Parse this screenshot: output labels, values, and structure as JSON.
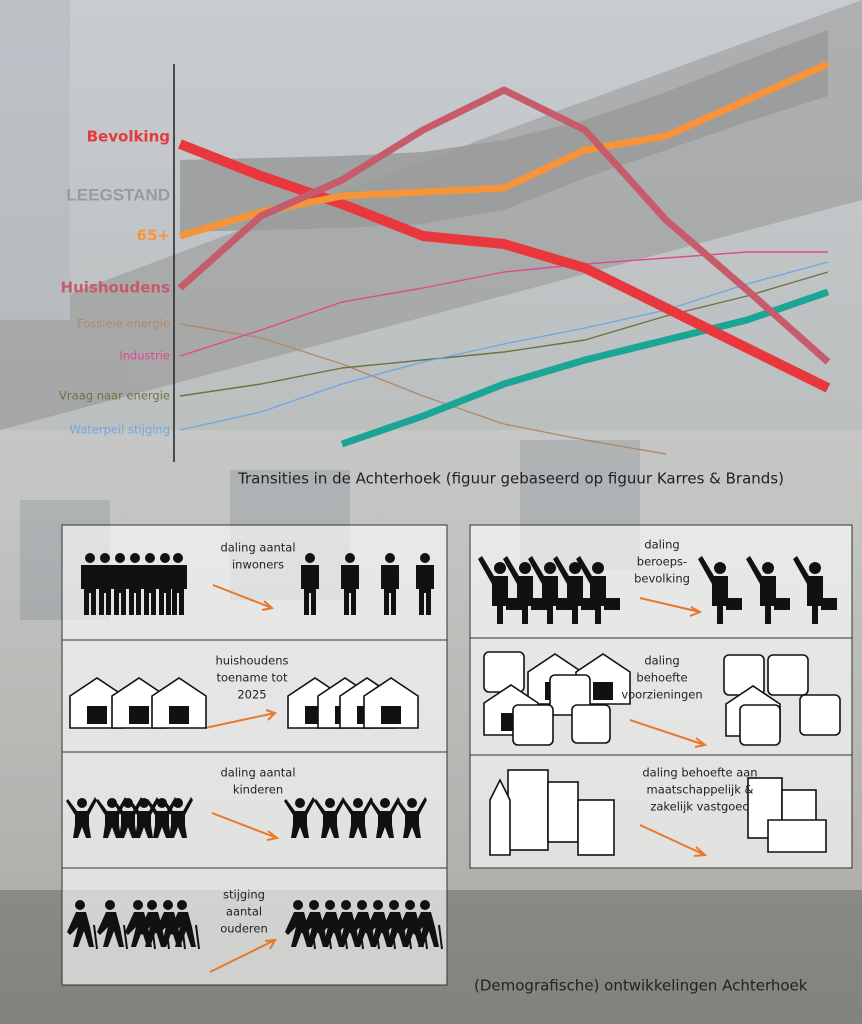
{
  "chart_data": {
    "type": "line",
    "band": {
      "name": "LEEGSTAND",
      "color": "#9a9a9a",
      "values": [
        75,
        75.5,
        76,
        77,
        80,
        85,
        92,
        100,
        107.5
      ],
      "lower": [
        57,
        57.5,
        58,
        59,
        62.5,
        70.5,
        77.5,
        84.5,
        91
      ]
    },
    "series": [
      {
        "name": "Bevolking",
        "color": "#e8383d",
        "values": [
          79,
          71,
          64,
          56,
          54,
          48,
          38,
          28,
          18
        ]
      },
      {
        "name": "65+",
        "color": "#f7943a",
        "values": [
          56,
          62,
          66,
          67,
          68,
          77.5,
          81,
          90,
          99
        ]
      },
      {
        "name": "Huishoudens",
        "color": "#c65b6b",
        "values": [
          43,
          61,
          70,
          82.5,
          92.5,
          82.5,
          60,
          42.5,
          24.5
        ]
      },
      {
        "name": "Fossiele energie",
        "color": "#b0896a",
        "values": [
          34,
          30.5,
          24,
          16,
          9,
          5,
          1.5,
          null,
          null
        ]
      },
      {
        "name": "Industrie",
        "color": "#e0488f",
        "values": [
          26,
          32.5,
          39.5,
          43,
          47,
          49,
          50.5,
          52,
          52
        ]
      },
      {
        "name": "Vraag  naar energie",
        "color": "#6e7340",
        "values": [
          16,
          19,
          23,
          25,
          27,
          30,
          36,
          41,
          47
        ]
      },
      {
        "name": "Waterpeil stijging",
        "color": "#6ea8e0",
        "values": [
          7.5,
          12,
          19,
          24.5,
          29,
          33,
          37.5,
          44,
          49.5
        ]
      },
      {
        "color": "#1aa595",
        "values": [
          null,
          null,
          4,
          11,
          19,
          25,
          30,
          35,
          42
        ]
      }
    ]
  },
  "captions": {
    "chart": "Transities in de Achterhoek (figuur gebaseerd op figuur Karres & Brands)",
    "panels": "(Demografische) ontwikkelingen Achterhoek"
  },
  "panels_left": [
    {
      "lines": [
        "daling aantal",
        "inwoners"
      ]
    },
    {
      "lines": [
        "huishoudens",
        "toename tot",
        "2025"
      ]
    },
    {
      "lines": [
        "daling aantal",
        "kinderen"
      ]
    },
    {
      "lines": [
        "stijging",
        "aantal",
        "ouderen"
      ]
    }
  ],
  "panels_right": [
    {
      "lines": [
        "daling",
        "beroeps-",
        "bevolking"
      ]
    },
    {
      "lines": [
        "daling",
        "behoefte",
        "voorzieningen"
      ]
    },
    {
      "lines": [
        "daling behoefte aan",
        "maatschappelijk &",
        "zakelijk vastgoed"
      ]
    }
  ]
}
